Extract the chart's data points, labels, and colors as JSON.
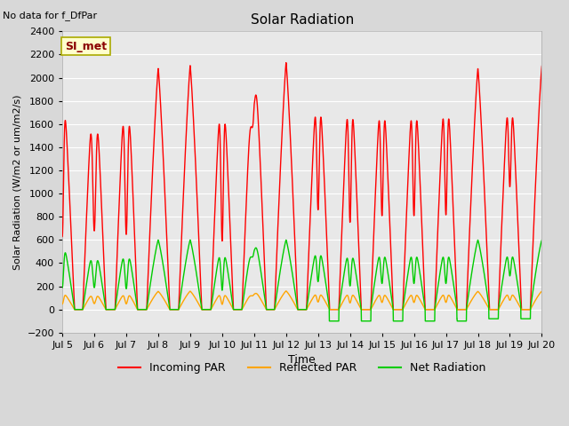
{
  "title": "Solar Radiation",
  "xlabel": "Time",
  "ylabel": "Solar Radiation (W/m2 or um/m2/s)",
  "top_left_text": "No data for f_DfPar",
  "legend_label_text": "SI_met",
  "legend_colors": {
    "Incoming PAR": "#ff0000",
    "Reflected PAR": "#ffa500",
    "Net Radiation": "#00cc00"
  },
  "ylim": [
    -200,
    2400
  ],
  "yticks": [
    -200,
    0,
    200,
    400,
    600,
    800,
    1000,
    1200,
    1400,
    1600,
    1800,
    2000,
    2200,
    2400
  ],
  "x_start": 5.0,
  "x_end": 20.0,
  "xtick_labels": [
    "Jul 5",
    "Jul 6",
    "Jul 7",
    "Jul 8",
    "Jul 9",
    "Jul 10",
    "Jul 11",
    "Jul 12",
    "Jul 13",
    "Jul 14",
    "Jul 15",
    "Jul 16",
    "Jul 17",
    "Jul 18",
    "Jul 19",
    "Jul 20"
  ],
  "xtick_positions": [
    5,
    6,
    7,
    8,
    9,
    10,
    11,
    12,
    13,
    14,
    15,
    16,
    17,
    18,
    19,
    20
  ],
  "plot_bg_color": "#e8e8e8",
  "grid_color": "#ffffff",
  "line_width": 1.0,
  "fig_bg_color": "#d8d8d8"
}
